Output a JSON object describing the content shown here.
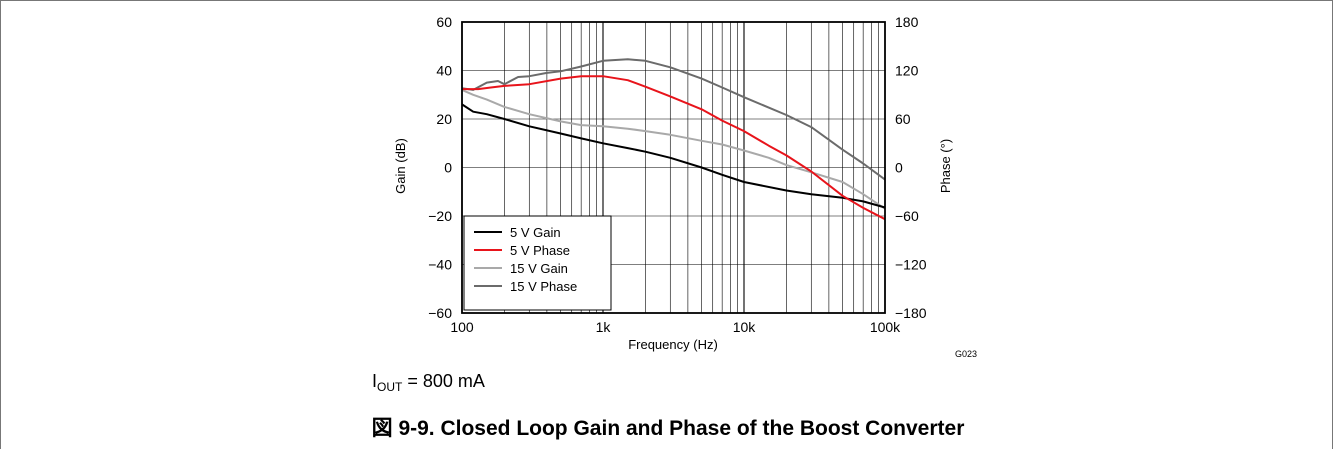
{
  "chart_data": {
    "type": "line",
    "xlabel": "Frequency (Hz)",
    "ylabel": "Gain (dB)",
    "y2label": "Phase (°)",
    "xscale": "log",
    "xlim": [
      100,
      100000
    ],
    "ylim": [
      -60,
      60
    ],
    "y2lim": [
      -180,
      180
    ],
    "grid": true,
    "legend_position": "bottom-left",
    "x_tick_labels": [
      "100",
      "1k",
      "10k",
      "100k"
    ],
    "x_tick_values": [
      100,
      1000,
      10000,
      100000
    ],
    "y_tick_labels": [
      "60",
      "40",
      "20",
      "0",
      "−20",
      "−40",
      "−60"
    ],
    "y_tick_values": [
      60,
      40,
      20,
      0,
      -20,
      -40,
      -60
    ],
    "y2_tick_labels": [
      "180",
      "120",
      "60",
      "0",
      "−60",
      "−120",
      "−180"
    ],
    "y2_tick_values": [
      180,
      120,
      60,
      0,
      -60,
      -120,
      -180
    ],
    "figure_code": "G023",
    "series": [
      {
        "name": "5 V Gain",
        "axis": "left",
        "color": "#000000",
        "x": [
          100,
          120,
          150,
          200,
          300,
          500,
          700,
          1000,
          1500,
          2000,
          3000,
          5000,
          7000,
          10000,
          20000,
          30000,
          50000,
          70000,
          100000
        ],
        "y": [
          26,
          23,
          22,
          20,
          17,
          14,
          12,
          10,
          8,
          6.5,
          4,
          0,
          -3,
          -6,
          -9.5,
          -11,
          -12.5,
          -14,
          -16.5
        ]
      },
      {
        "name": "5 V Phase",
        "axis": "right",
        "color": "#e8141b",
        "x": [
          100,
          130,
          160,
          200,
          300,
          500,
          700,
          1000,
          1500,
          2000,
          3000,
          5000,
          7000,
          10000,
          15000,
          20000,
          30000,
          50000,
          70000,
          100000
        ],
        "y": [
          97,
          97,
          99,
          101,
          103,
          110,
          113,
          113,
          108,
          100,
          88,
          72,
          58,
          45,
          27,
          15,
          -5,
          -35,
          -50,
          -64
        ]
      },
      {
        "name": "15 V Gain",
        "axis": "left",
        "color": "#a9a9a9",
        "x": [
          100,
          120,
          150,
          200,
          300,
          500,
          700,
          1000,
          1500,
          2000,
          3000,
          5000,
          7000,
          10000,
          15000,
          20000,
          30000,
          50000,
          70000,
          100000
        ],
        "y": [
          32,
          30,
          28,
          25,
          22,
          19,
          17.5,
          17,
          16,
          15,
          13.5,
          11,
          9.5,
          7,
          4,
          1,
          -2,
          -6,
          -11,
          -17
        ]
      },
      {
        "name": "15 V Phase",
        "axis": "right",
        "color": "#6b6b6b",
        "x": [
          100,
          120,
          150,
          180,
          200,
          250,
          300,
          400,
          500,
          700,
          1000,
          1500,
          2000,
          3000,
          5000,
          7000,
          10000,
          20000,
          30000,
          50000,
          70000,
          100000
        ],
        "y": [
          98,
          96,
          105,
          107,
          103,
          112,
          113,
          117,
          119,
          125,
          132,
          134,
          132,
          124,
          110,
          99,
          87,
          65,
          50,
          22,
          5,
          -15
        ]
      }
    ]
  },
  "note": {
    "prefix": "I",
    "subscript": "OUT",
    "suffix": " = 800 mA"
  },
  "caption": "図 9-9. Closed Loop Gain and Phase of the Boost Converter"
}
